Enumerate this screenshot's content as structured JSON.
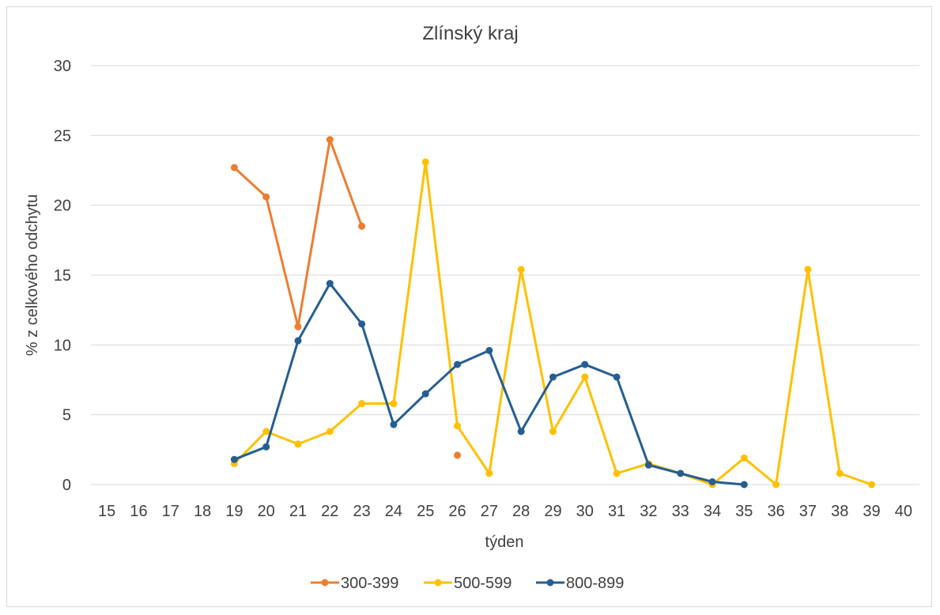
{
  "chart_data": {
    "type": "line",
    "title": "Zlínský kraj",
    "xlabel": "týden",
    "ylabel": "% z celkového odchytu",
    "x": [
      15,
      16,
      17,
      18,
      19,
      20,
      21,
      22,
      23,
      24,
      25,
      26,
      27,
      28,
      29,
      30,
      31,
      32,
      33,
      34,
      35,
      36,
      37,
      38,
      39,
      40
    ],
    "ylim": [
      0,
      30
    ],
    "yticks": [
      0,
      5,
      10,
      15,
      20,
      25,
      30
    ],
    "grid": "horizontal",
    "legend_position": "bottom",
    "series": [
      {
        "name": "300-399",
        "color": "#ED7D31",
        "values": [
          null,
          null,
          null,
          null,
          22.7,
          20.6,
          11.3,
          24.7,
          18.5,
          null,
          null,
          2.1,
          null,
          null,
          null,
          null,
          null,
          null,
          null,
          null,
          null,
          null,
          null,
          null,
          null,
          null
        ]
      },
      {
        "name": "500-599",
        "color": "#FFC000",
        "values": [
          null,
          null,
          null,
          null,
          1.5,
          3.8,
          2.9,
          3.8,
          5.8,
          5.8,
          23.1,
          4.2,
          0.8,
          15.4,
          3.8,
          7.7,
          0.8,
          1.5,
          0.8,
          0.0,
          1.9,
          0.0,
          15.4,
          0.8,
          0.0,
          null
        ]
      },
      {
        "name": "800-899",
        "color": "#255E91",
        "values": [
          null,
          null,
          null,
          null,
          1.8,
          2.7,
          10.3,
          14.4,
          11.5,
          4.3,
          6.5,
          8.6,
          9.6,
          3.8,
          7.7,
          8.6,
          7.7,
          1.4,
          0.8,
          0.2,
          0.0,
          null,
          null,
          null,
          null,
          null
        ]
      }
    ]
  }
}
